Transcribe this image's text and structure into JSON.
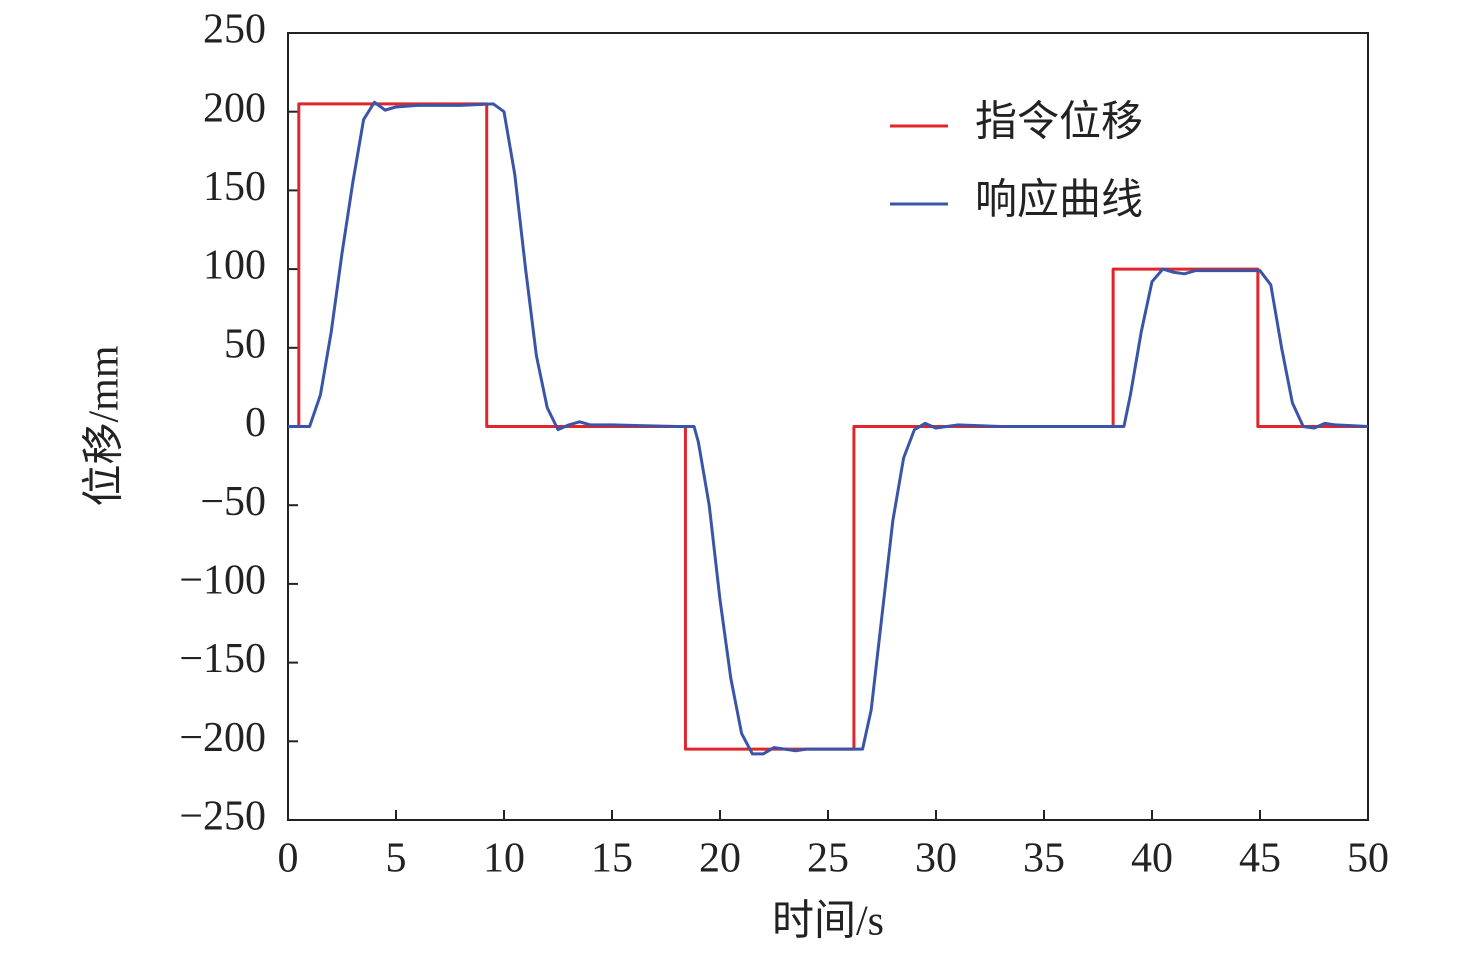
{
  "chart_data": {
    "type": "line",
    "xlabel": "时间/s",
    "ylabel": "位移/mm",
    "xlim": [
      0,
      50
    ],
    "xticks": [
      0,
      5,
      10,
      15,
      20,
      25,
      30,
      35,
      40,
      45,
      50
    ],
    "ylim": [
      -250,
      250
    ],
    "yticks": [
      {
        "value": -250,
        "label": "−250"
      },
      {
        "value": -200,
        "label": "−200"
      },
      {
        "value": -150,
        "label": "−150"
      },
      {
        "value": -100,
        "label": "−100"
      },
      {
        "value": -50,
        "label": "−50"
      },
      0,
      50,
      100,
      150,
      200,
      250
    ],
    "grid": false,
    "legend": "upper right",
    "series": [
      {
        "name": "指令位移",
        "color": "#e0262c",
        "x": [
          0,
          0.5,
          0.5,
          9.2,
          9.2,
          18.4,
          18.4,
          26.2,
          26.2,
          38.2,
          38.2,
          44.9,
          44.9,
          50
        ],
        "values": [
          0,
          0,
          205,
          205,
          0,
          0,
          -205,
          -205,
          0,
          0,
          100,
          100,
          0,
          0
        ]
      },
      {
        "name": "响应曲线",
        "color": "#3a55a8",
        "x": [
          0,
          1,
          1.5,
          2,
          2.5,
          3,
          3.5,
          4,
          4.5,
          5,
          6,
          8,
          9.5,
          10,
          10.5,
          11,
          11.5,
          12,
          12.5,
          13,
          13.5,
          14,
          15,
          18,
          18.8,
          19,
          19.5,
          20,
          20.5,
          21,
          21.5,
          22,
          22.5,
          23,
          23.5,
          24,
          26,
          26.6,
          27,
          27.5,
          28,
          28.5,
          29,
          29.5,
          30,
          30.5,
          31,
          33,
          38,
          38.7,
          39,
          39.5,
          40,
          40.5,
          41,
          41.5,
          42,
          45,
          45.5,
          46,
          46.5,
          47,
          47.5,
          48,
          48.5,
          50
        ],
        "values": [
          0,
          0,
          20,
          60,
          110,
          155,
          195,
          206,
          201,
          203,
          204,
          204,
          205,
          200,
          160,
          100,
          45,
          12,
          -2,
          1,
          3,
          1,
          1,
          0,
          0,
          -10,
          -50,
          -110,
          -160,
          -195,
          -208,
          -208,
          -204,
          -205,
          -206,
          -205,
          -205,
          -205,
          -180,
          -120,
          -60,
          -20,
          -2,
          2,
          -1,
          0,
          1,
          0,
          0,
          0,
          20,
          60,
          92,
          100,
          98,
          97,
          99,
          99,
          90,
          50,
          15,
          0,
          -1,
          2,
          1,
          0
        ]
      }
    ]
  }
}
